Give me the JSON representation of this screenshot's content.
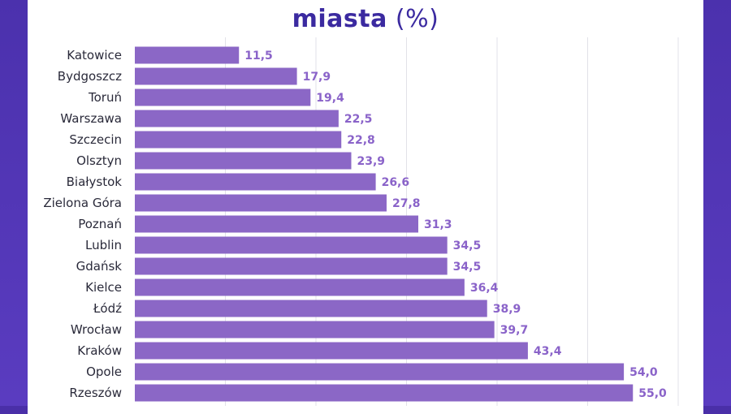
{
  "title": {
    "main": "miasta",
    "suffix": "(%)"
  },
  "colors": {
    "bar": "#8b67c6",
    "label": "#8a63c9",
    "frame": "#4b31ad",
    "title": "#3b2aa0",
    "grid": "#e2e2e8"
  },
  "chart_data": {
    "type": "bar",
    "orientation": "horizontal",
    "title": "miasta (%)",
    "categories": [
      "Katowice",
      "Bydgoszcz",
      "Toruń",
      "Warszawa",
      "Szczecin",
      "Olsztyn",
      "Białystok",
      "Zielona Góra",
      "Poznań",
      "Lublin",
      "Gdańsk",
      "Kielce",
      "Łódź",
      "Wrocław",
      "Kraków",
      "Opole",
      "Rzeszów"
    ],
    "values": [
      11.5,
      17.9,
      19.4,
      22.5,
      22.8,
      23.9,
      26.6,
      27.8,
      31.3,
      34.5,
      34.5,
      36.4,
      38.9,
      39.7,
      43.4,
      54.0,
      55.0
    ],
    "value_labels": [
      "11,5",
      "17,9",
      "19,4",
      "22,5",
      "22,8",
      "23,9",
      "26,6",
      "27,8",
      "31,3",
      "34,5",
      "34,5",
      "36,4",
      "38,9",
      "39,7",
      "43,4",
      "54,0",
      "55,0"
    ],
    "xlim": [
      0,
      60
    ],
    "grid": true
  }
}
